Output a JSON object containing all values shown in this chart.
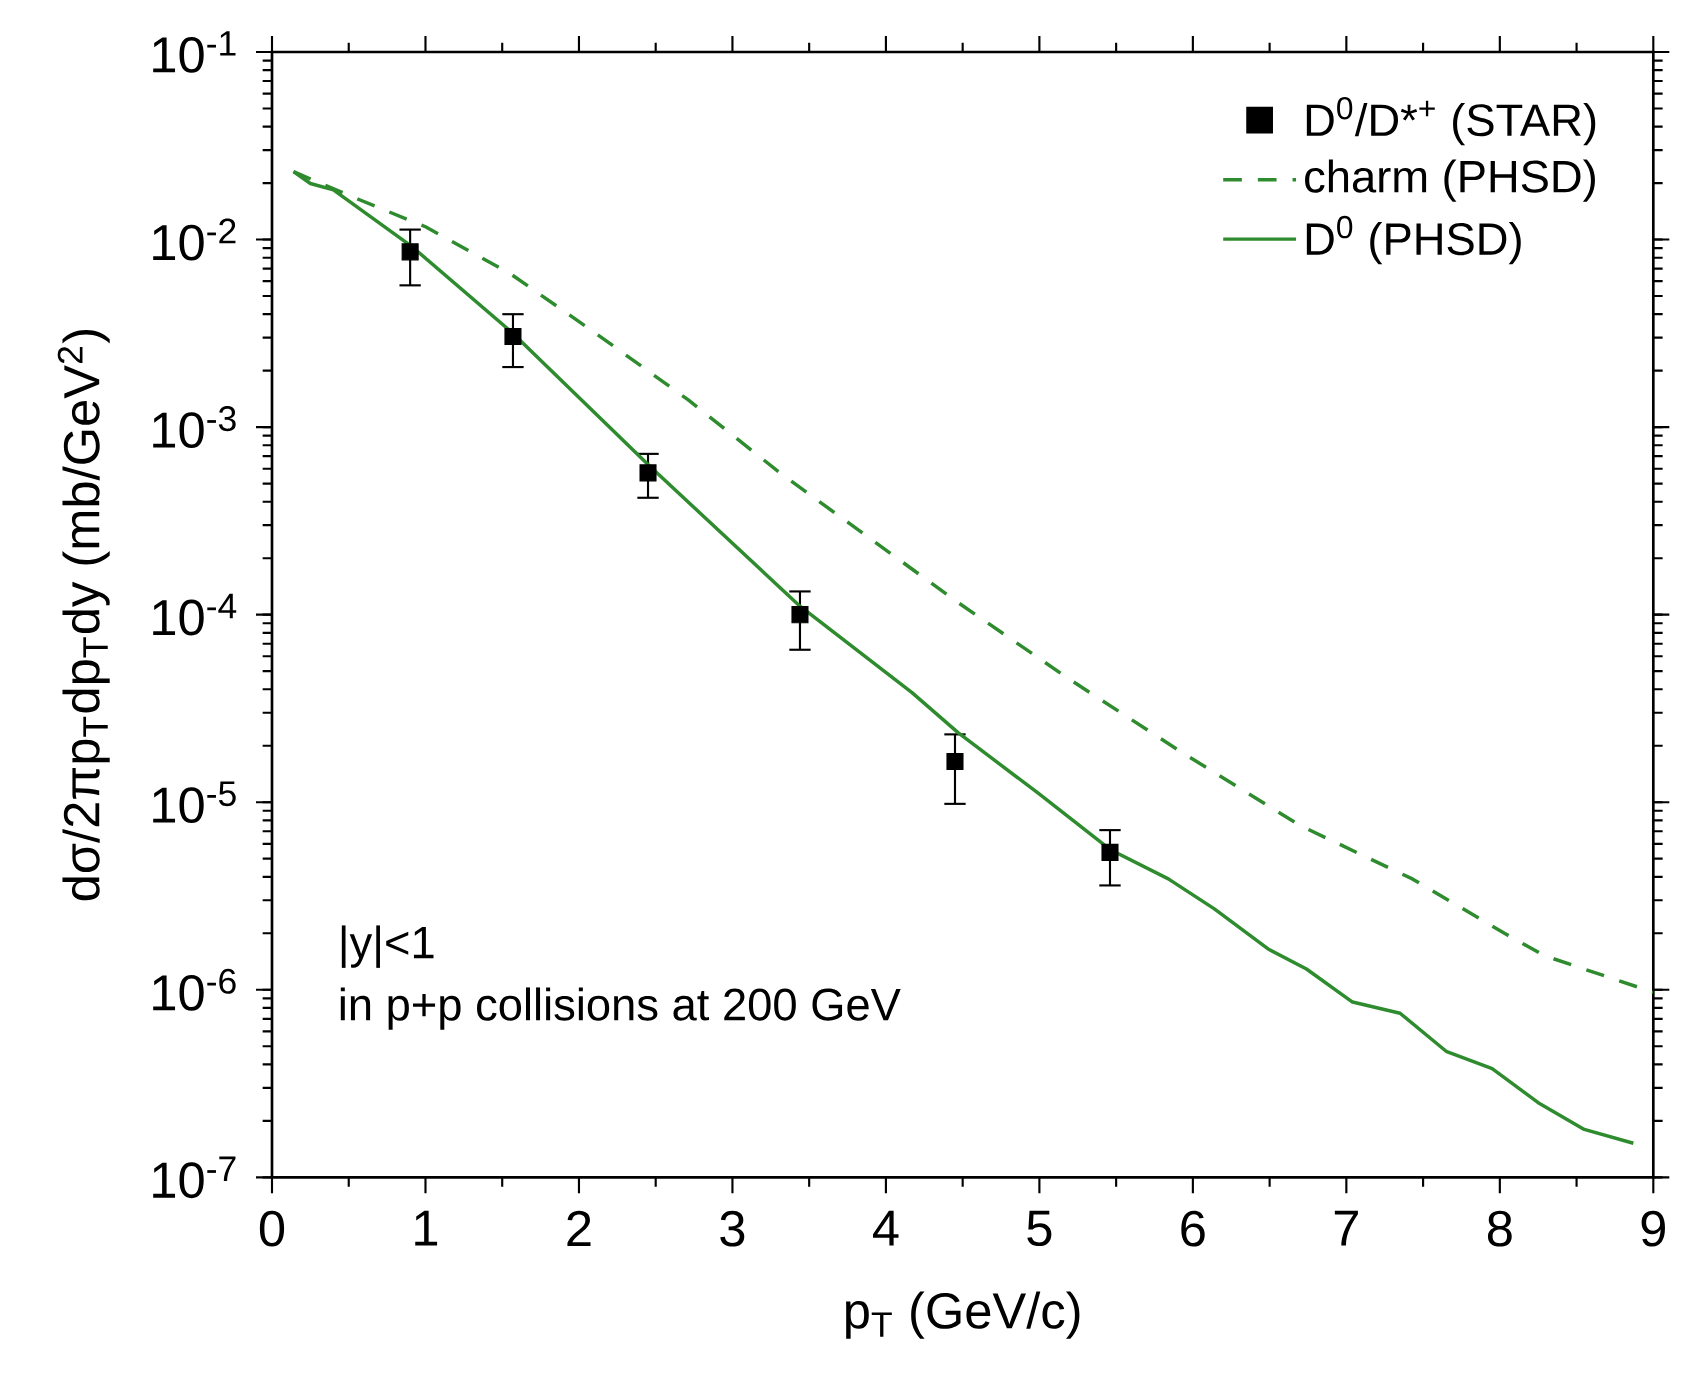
{
  "chart_data": {
    "type": "line",
    "xlabel": "p$_{T}$ (GeV/c)",
    "ylabel": "dσ/2πp$_{T}$dp$_{T}$dy (mb/GeV$^{2}$)",
    "log": "y",
    "xlim": [
      0,
      9
    ],
    "ylim": [
      1e-07,
      0.1
    ],
    "xticks": [
      0,
      1,
      2,
      3,
      4,
      5,
      6,
      7,
      8,
      9
    ],
    "yticks": [
      {
        "value": 1e-07,
        "label": "10$^{-7}$"
      },
      {
        "value": 1e-06,
        "label": "10$^{-6}$"
      },
      {
        "value": 1e-05,
        "label": "10$^{-5}$"
      },
      {
        "value": 0.0001,
        "label": "10$^{-4}$"
      },
      {
        "value": 0.001,
        "label": "10$^{-3}$"
      },
      {
        "value": 0.01,
        "label": "10$^{-2}$"
      },
      {
        "value": 0.1,
        "label": "10$^{-1}$"
      }
    ],
    "legend": "top right",
    "grid": false,
    "annotations": [
      "|y|<1",
      "in p+p collisions at 200 GeV"
    ],
    "series": [
      {
        "name": "D$^{0}$/D*$^{+}$ (STAR)",
        "type": "scatter",
        "marker": "square",
        "color": "#000000",
        "x": [
          0.9,
          1.57,
          2.45,
          3.44,
          4.45,
          5.46
        ],
        "values": [
          0.0086,
          0.00304,
          0.00057,
          0.0001,
          1.65e-05,
          5.4e-06
        ],
        "errors": [
          [
            0.0057,
            0.0113
          ],
          [
            0.00209,
            0.004
          ],
          [
            0.00042,
            0.00072
          ],
          [
            6.5e-05,
            0.000133
          ],
          [
            9.8e-06,
            2.3e-05
          ],
          [
            3.6e-06,
            7.1e-06
          ]
        ]
      },
      {
        "name": "charm (PHSD)",
        "line_style": "dashed",
        "color": "#2e8b2e",
        "x": [
          0.14,
          0.57,
          1.0,
          1.55,
          2.11,
          2.71,
          3.31,
          3.91,
          4.47,
          5.2,
          5.93,
          6.7,
          7.43,
          8.03,
          8.29,
          9.0
        ],
        "values": [
          0.023,
          0.0163,
          0.0117,
          0.0066,
          0.00316,
          0.0014,
          0.00057,
          0.00025,
          0.000116,
          4.5e-05,
          1.84e-05,
          7.5e-06,
          3.9e-06,
          2e-06,
          1.52e-06,
          9.7e-07
        ]
      },
      {
        "name": "D$^{0}$ (PHSD)",
        "line_style": "solid",
        "color": "#2e8b2e",
        "x": [
          0.14,
          0.25,
          0.4,
          0.91,
          1.57,
          2.46,
          3.44,
          4.17,
          4.47,
          4.99,
          5.46,
          5.84,
          6.14,
          6.49,
          6.74,
          7.04,
          7.35,
          7.65,
          7.95,
          8.25,
          8.55,
          8.87
        ],
        "values": [
          0.023,
          0.0199,
          0.0184,
          0.0092,
          0.00316,
          0.00062,
          0.000111,
          3.84e-05,
          2.35e-05,
          1.12e-05,
          5.6e-06,
          3.9e-06,
          2.7e-06,
          1.65e-06,
          1.29e-06,
          8.6e-07,
          7.5e-07,
          4.7e-07,
          3.8e-07,
          2.5e-07,
          1.8e-07,
          1.52e-07
        ]
      }
    ]
  }
}
